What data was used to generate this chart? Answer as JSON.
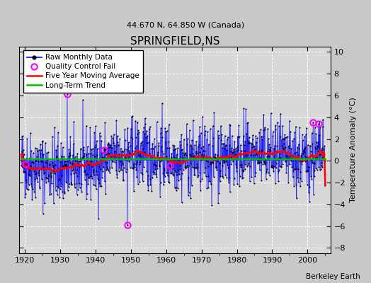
{
  "title": "SPRINGFIELD,NS",
  "subtitle": "44.670 N, 64.850 W (Canada)",
  "ylabel": "Temperature Anomaly (°C)",
  "credit": "Berkeley Earth",
  "xlim": [
    1918.5,
    2006.5
  ],
  "ylim": [
    -8.5,
    10.5
  ],
  "yticks": [
    -8,
    -6,
    -4,
    -2,
    0,
    2,
    4,
    6,
    8,
    10
  ],
  "xticks": [
    1920,
    1930,
    1940,
    1950,
    1960,
    1970,
    1980,
    1990,
    2000
  ],
  "seed": 42,
  "raw_color": "#0000ff",
  "ma_color": "#ff0000",
  "trend_color": "#00bb00",
  "qc_color": "#ff00ff",
  "bg_color": "#d8d8d8",
  "grid_color": "#ffffff",
  "n_months": 1032,
  "start_year": 1919.0,
  "noise_std": 1.6
}
